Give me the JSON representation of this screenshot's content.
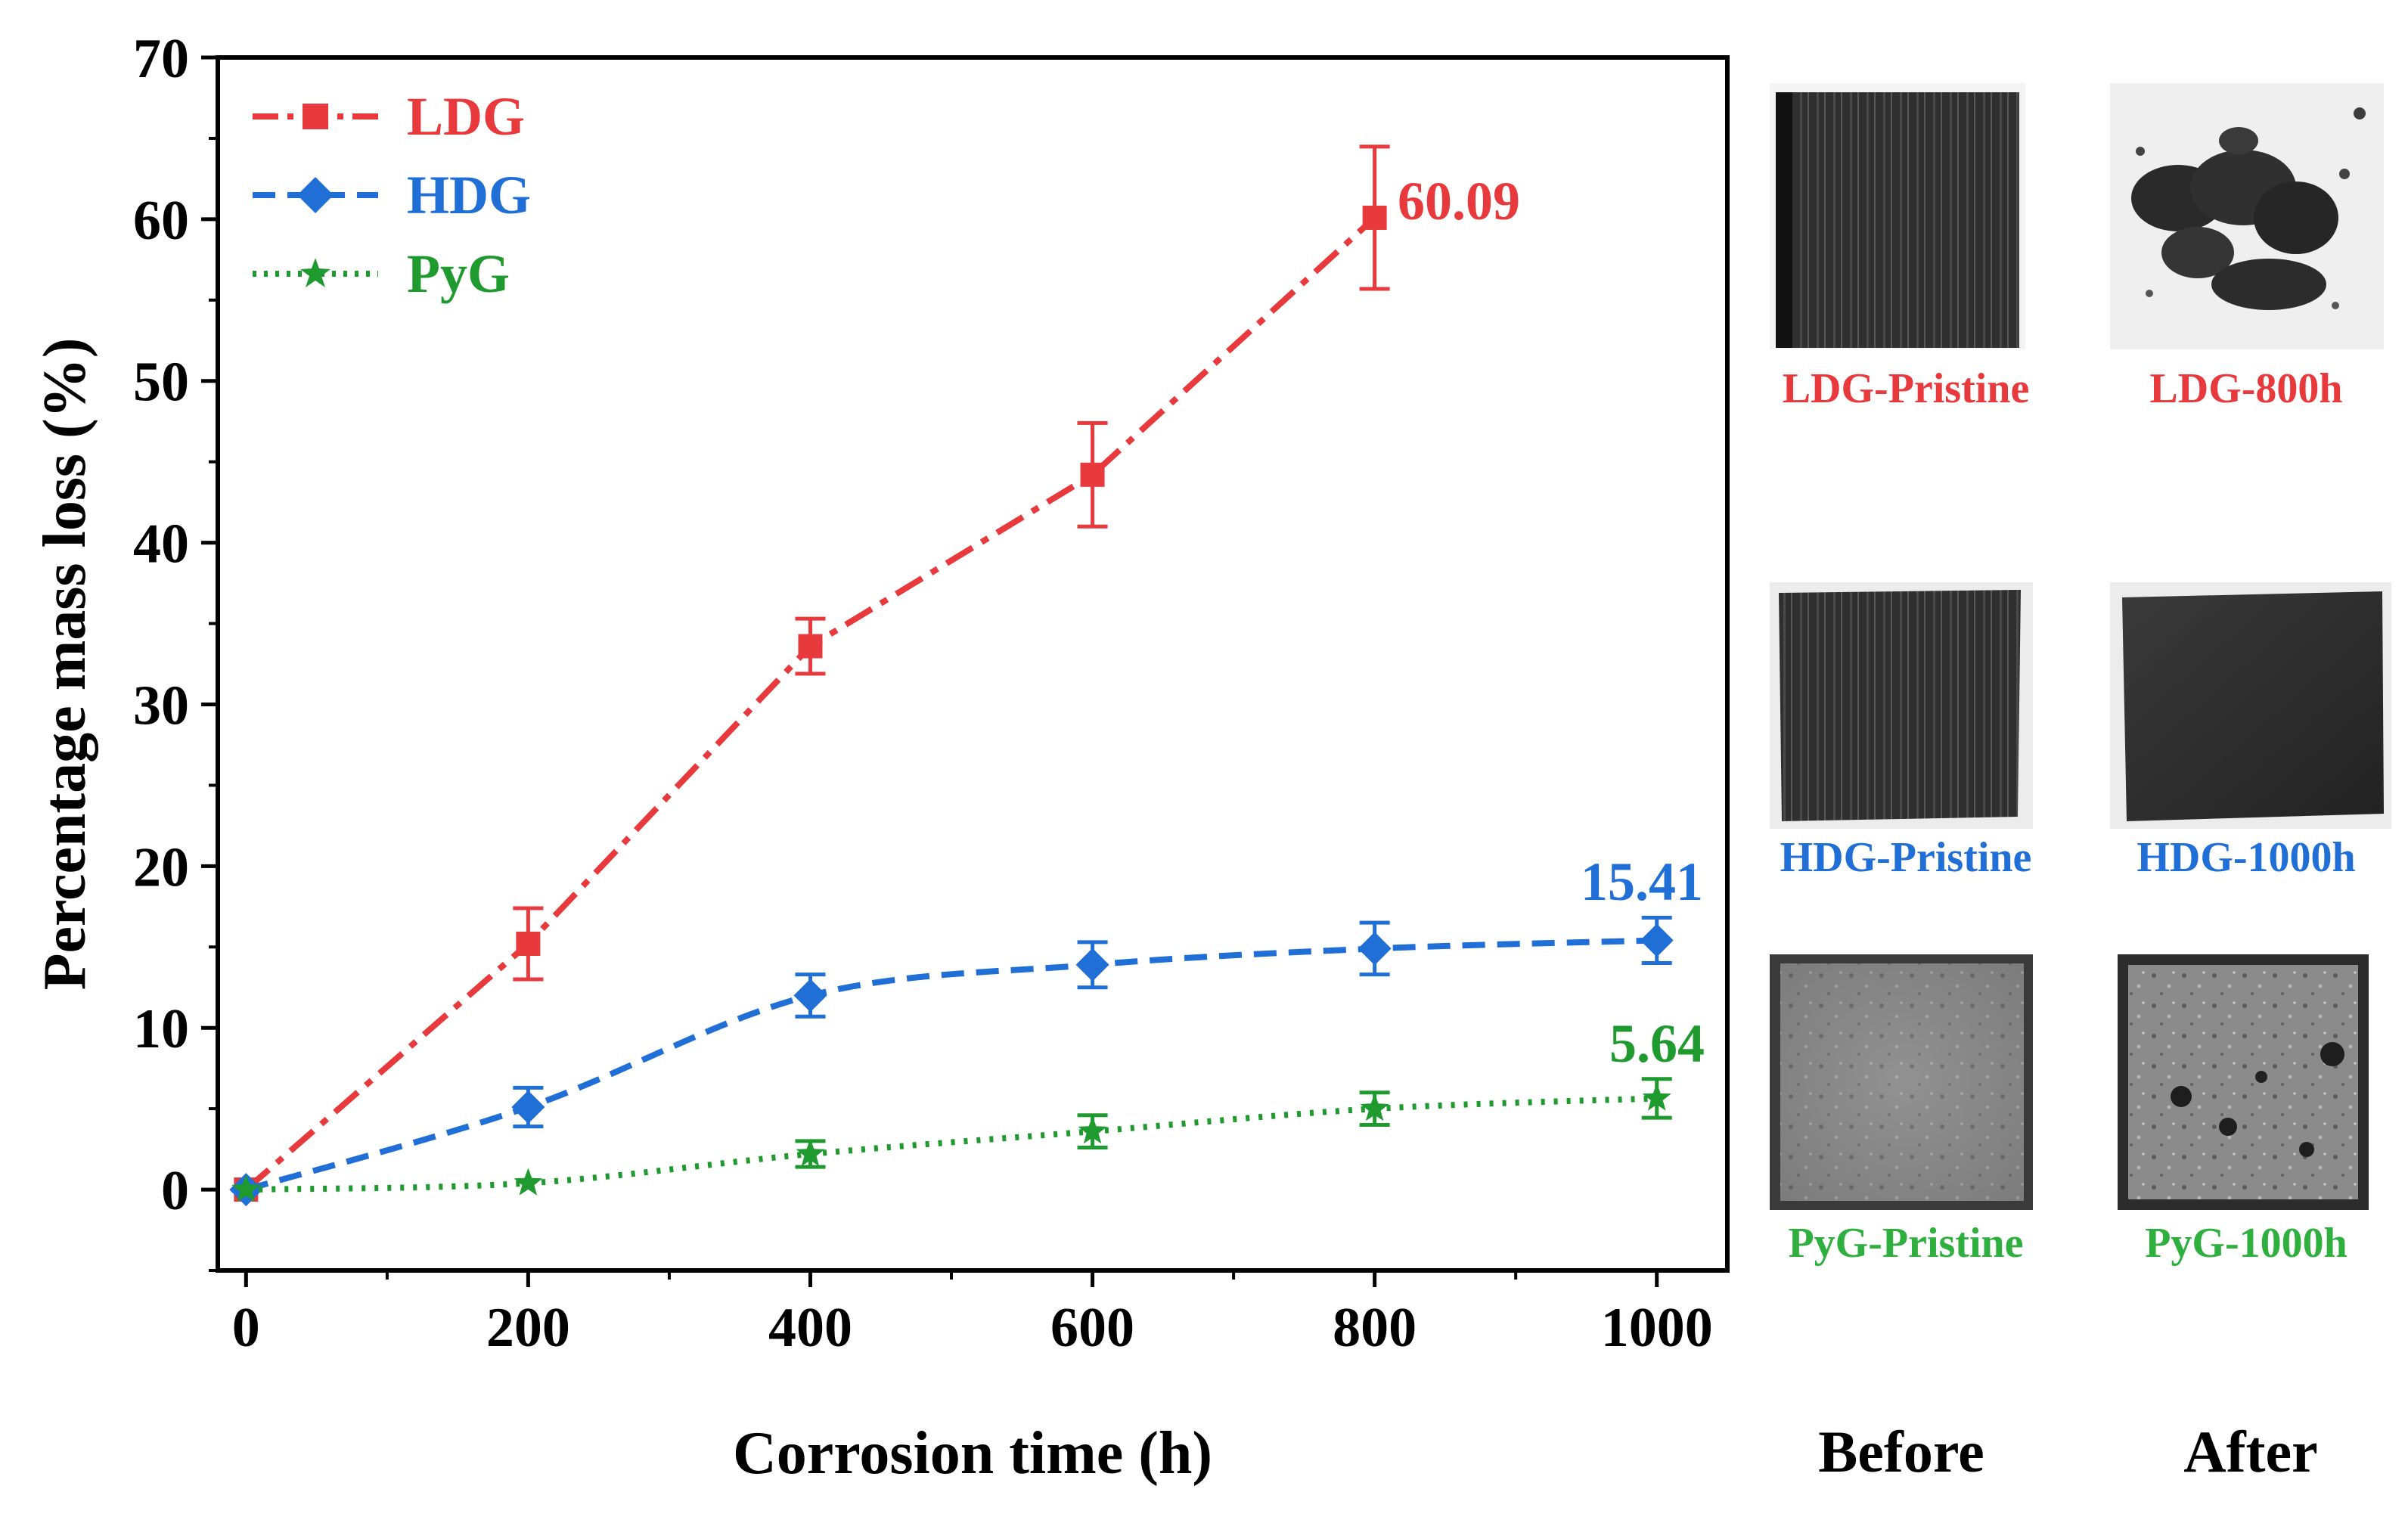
{
  "chart_data": {
    "type": "line",
    "xlabel": "Corrosion time (h)",
    "ylabel": "Percentage mass loss (%)",
    "xlim": [
      -20,
      1050
    ],
    "ylim": [
      -5,
      70
    ],
    "xticks": [
      0,
      200,
      400,
      600,
      800,
      1000
    ],
    "xtick_labels": [
      "0",
      "200",
      "400",
      "600",
      "800",
      "1000"
    ],
    "yticks": [
      0,
      10,
      20,
      30,
      40,
      50,
      60,
      70
    ],
    "ytick_labels": [
      "0",
      "10",
      "20",
      "30",
      "40",
      "50",
      "60",
      "70"
    ],
    "legend_position": "top-left",
    "series": [
      {
        "name": "LDG",
        "color": "#e8393c",
        "marker": "square",
        "line_style": "dash-dot",
        "x": [
          0,
          200,
          400,
          600,
          800
        ],
        "values": [
          0,
          15.2,
          33.6,
          44.2,
          60.09
        ],
        "errors": [
          0.2,
          2.2,
          1.7,
          3.2,
          4.4
        ],
        "end_label": "60.09"
      },
      {
        "name": "HDG",
        "color": "#1f6fd6",
        "marker": "diamond",
        "line_style": "dashed",
        "x": [
          0,
          200,
          400,
          600,
          800,
          1000
        ],
        "values": [
          0,
          5.1,
          12.0,
          13.9,
          14.9,
          15.41
        ],
        "errors": [
          0.2,
          1.2,
          1.3,
          1.4,
          1.6,
          1.4
        ],
        "end_label": "15.41"
      },
      {
        "name": "PyG",
        "color": "#1f9a2e",
        "marker": "star",
        "line_style": "dotted",
        "x": [
          0,
          200,
          400,
          600,
          800,
          1000
        ],
        "values": [
          0,
          0.4,
          2.2,
          3.6,
          5.0,
          5.64
        ],
        "errors": [
          0.1,
          0.3,
          0.8,
          1.0,
          1.0,
          1.2
        ],
        "end_label": "5.64"
      }
    ]
  },
  "photo_panel": {
    "column_labels": [
      "Before",
      "After"
    ],
    "samples": [
      {
        "before_caption": "LDG-Pristine",
        "after_caption": "LDG-800h",
        "color": "#e8393c"
      },
      {
        "before_caption": "HDG-Pristine",
        "after_caption": "HDG-1000h",
        "color": "#1f6fd6"
      },
      {
        "before_caption": "PyG-Pristine",
        "after_caption": "PyG-1000h",
        "color": "#2eaf3e"
      }
    ]
  }
}
